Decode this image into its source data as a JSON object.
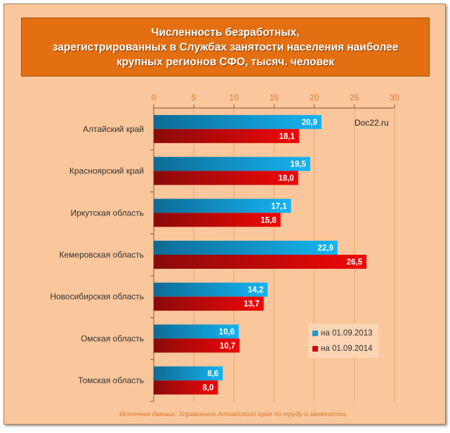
{
  "chart_data": {
    "type": "bar",
    "orientation": "horizontal",
    "title_lines": [
      "Численность безработных,",
      "зарегистрированных в Службах занятости населения наиболее",
      "крупных регионов СФО, тысяч. человек"
    ],
    "categories": [
      "Алтайский край",
      "Красноярский край",
      "Иркутская область",
      "Кемеровская область",
      "Новосибирская область",
      "Омская область",
      "Томская область"
    ],
    "series": [
      {
        "name": "на 01.09.2013",
        "color": "#1aa3e0",
        "values": [
          20.9,
          19.5,
          17.1,
          22.9,
          14.2,
          10.6,
          8.6
        ],
        "labels": [
          "20,9",
          "19,5",
          "17,1",
          "22,9",
          "14,2",
          "10,6",
          "8,6"
        ]
      },
      {
        "name": "на 01.09.2014",
        "color": "#e01010",
        "values": [
          18.1,
          18.0,
          15.8,
          26.5,
          13.7,
          10.7,
          8.0
        ],
        "labels": [
          "18,1",
          "18,0",
          "15,8",
          "26,5",
          "13,7",
          "10,7",
          "8,0"
        ]
      }
    ],
    "xlim": [
      0,
      30
    ],
    "xticks": [
      "0",
      "5",
      "10",
      "15",
      "20",
      "25",
      "30"
    ],
    "grid": true,
    "legend_position": "bottom-right",
    "watermark": "Doc22.ru",
    "source": "Источник данных: Управление Алтайского края по труду и занятости."
  }
}
